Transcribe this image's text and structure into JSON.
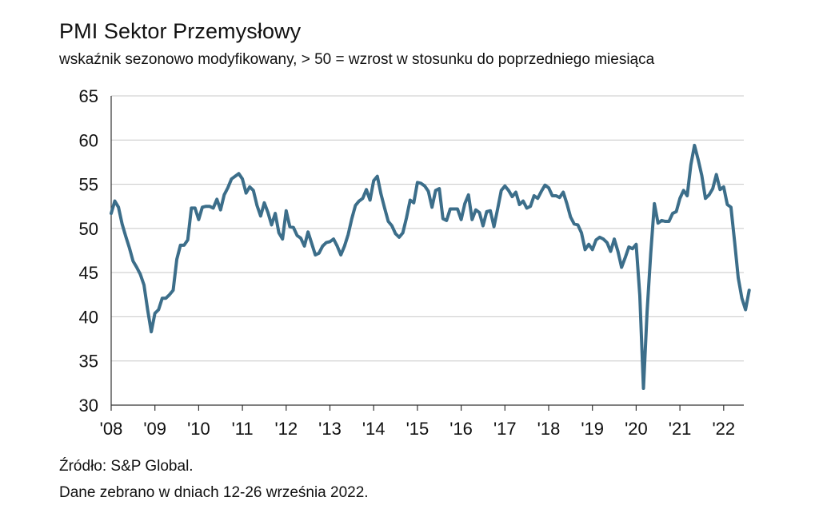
{
  "chart_data": {
    "type": "line",
    "title": "PMI Sektor Przemysłowy",
    "subtitle": "wskaźnik sezonowo modyfikowany, > 50 = wzrost w stosunku do poprzedniego miesiąca",
    "xlabel": "",
    "ylabel": "",
    "ylim": [
      30,
      65
    ],
    "y_ticks": [
      "65",
      "60",
      "55",
      "50",
      "45",
      "40",
      "35",
      "30"
    ],
    "x_ticks": [
      "'08",
      "'09",
      "'10",
      "'11",
      "'12",
      "'13",
      "'14",
      "'15",
      "'16",
      "'17",
      "'18",
      "'19",
      "'20",
      "'21",
      "'22"
    ],
    "grid": true,
    "line_color": "#3c6e8a",
    "series": [
      {
        "name": "PMI",
        "x_start": "2008-01",
        "values": [
          51.7,
          53.1,
          52.4,
          50.5,
          49.1,
          47.8,
          46.3,
          45.6,
          44.8,
          43.6,
          40.8,
          38.3,
          40.4,
          40.8,
          42.1,
          42.1,
          42.5,
          43.0,
          46.5,
          48.1,
          48.1,
          48.7,
          52.3,
          52.3,
          51.0,
          52.4,
          52.5,
          52.5,
          52.3,
          53.3,
          52.1,
          53.8,
          54.6,
          55.6,
          55.9,
          56.2,
          55.6,
          54.0,
          54.7,
          54.3,
          52.6,
          51.4,
          52.9,
          51.8,
          50.4,
          51.7,
          49.5,
          48.8,
          52.0,
          50.2,
          50.1,
          49.2,
          48.9,
          48.0,
          49.6,
          48.3,
          47.0,
          47.2,
          48.0,
          48.4,
          48.5,
          48.8,
          48.0,
          47.0,
          48.0,
          49.3,
          51.1,
          52.6,
          53.1,
          53.4,
          54.4,
          53.2,
          55.4,
          55.9,
          53.9,
          52.3,
          50.8,
          50.3,
          49.4,
          49.0,
          49.5,
          51.2,
          53.2,
          52.9,
          55.2,
          55.1,
          54.8,
          54.2,
          52.4,
          54.3,
          54.5,
          51.1,
          50.9,
          52.2,
          52.2,
          52.2,
          51.0,
          52.8,
          53.8,
          51.0,
          52.1,
          51.8,
          50.3,
          51.9,
          52.0,
          50.2,
          52.2,
          54.3,
          54.8,
          54.3,
          53.6,
          54.1,
          52.7,
          53.1,
          52.3,
          52.5,
          53.7,
          53.4,
          54.2,
          54.9,
          54.6,
          53.7,
          53.7,
          53.5,
          54.1,
          52.8,
          51.3,
          50.5,
          50.4,
          49.5,
          47.6,
          48.2,
          47.6,
          48.7,
          49.0,
          48.8,
          48.4,
          47.4,
          48.8,
          47.4,
          45.6,
          46.7,
          47.9,
          47.7,
          48.2,
          42.4,
          31.9,
          40.6,
          47.2,
          52.8,
          50.6,
          50.9,
          50.8,
          50.8,
          51.7,
          51.9,
          53.4,
          54.3,
          53.7,
          57.2,
          59.4,
          57.8,
          56.0,
          53.4,
          53.8,
          54.5,
          56.1,
          54.4,
          54.7,
          52.7,
          52.4,
          48.5,
          44.4,
          42.1,
          40.8,
          43.0
        ]
      }
    ]
  },
  "footer": {
    "source": "Źródło: S&P Global.",
    "note": "Dane zebrano w dniach 12-26 września 2022."
  }
}
